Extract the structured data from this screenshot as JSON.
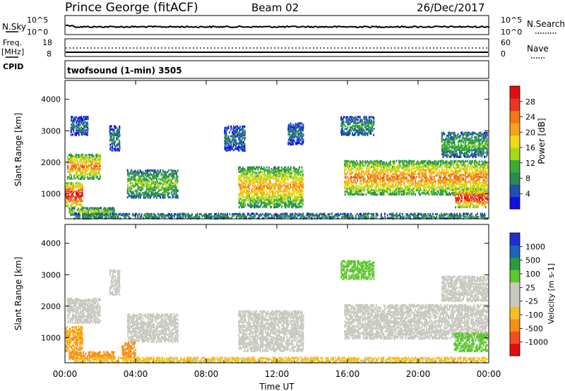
{
  "header": {
    "station": "Prince George (fitACF)",
    "beam": "Beam 02",
    "date": "26/Dec/2017"
  },
  "noise_panel": {
    "left_label": "N.Sky",
    "left_ticks": [
      "10^5",
      "10^0"
    ],
    "right_label": "N.Search",
    "right_ticks": [
      "10^5",
      "10^0"
    ]
  },
  "freq_panel": {
    "left_label_1": "Freq.",
    "left_label_2": "[MHz]",
    "left_ticks": [
      "18",
      "8"
    ],
    "right_label": "Nave",
    "right_ticks": [
      "60",
      "0"
    ],
    "cpid_label": "CPID"
  },
  "mode_text": "twofsound (1-min) 3505",
  "x_axis": {
    "title": "Time UT",
    "ticks": [
      "00:00",
      "04:00",
      "08:00",
      "12:00",
      "16:00",
      "20:00",
      "00:00"
    ]
  },
  "colors": {
    "power": [
      "#1010e0",
      "#2050b0",
      "#2a8a50",
      "#3aaa3a",
      "#a8d81a",
      "#f2d81a",
      "#f5a020",
      "#f07818",
      "#e83820",
      "#e01010"
    ],
    "velocity": [
      "#e01010",
      "#f05020",
      "#f59018",
      "#f2c020",
      "#c8c8c0",
      "#c8c8c0",
      "#5ac828",
      "#2a9a40",
      "#2060c0",
      "#2030d0"
    ],
    "ground": "#c8c8c0"
  },
  "chart_data": [
    {
      "type": "heatmap",
      "panel": "power",
      "ylabel": "Slant Range [km]",
      "yticks": [
        "1000",
        "2000",
        "3000",
        "4000"
      ],
      "ylim": [
        200,
        4600
      ],
      "xlim": [
        0,
        24
      ],
      "colorbar": {
        "title": "Power [dB]",
        "ticks": [
          "4",
          "8",
          "12",
          "16",
          "20",
          "24",
          "28"
        ],
        "range": [
          0,
          32
        ]
      },
      "regions": [
        {
          "t0": 0.1,
          "t1": 2.0,
          "r0": 1500,
          "r1": 2300,
          "v": 20
        },
        {
          "t0": 0.0,
          "t1": 1.0,
          "r0": 600,
          "r1": 1400,
          "v": 26
        },
        {
          "t0": 0.2,
          "t1": 2.8,
          "r0": 350,
          "r1": 600,
          "v": 12
        },
        {
          "t0": 0.3,
          "t1": 1.3,
          "r0": 2900,
          "r1": 3500,
          "v": 6
        },
        {
          "t0": 2.5,
          "t1": 3.1,
          "r0": 2400,
          "r1": 3200,
          "v": 7
        },
        {
          "t0": 3.5,
          "t1": 6.4,
          "r0": 900,
          "r1": 1800,
          "v": 12
        },
        {
          "t0": 9.0,
          "t1": 10.2,
          "r0": 2400,
          "r1": 3200,
          "v": 6
        },
        {
          "t0": 9.8,
          "t1": 13.5,
          "r0": 600,
          "r1": 1900,
          "v": 18
        },
        {
          "t0": 12.6,
          "t1": 13.5,
          "r0": 2600,
          "r1": 3300,
          "v": 6
        },
        {
          "t0": 15.6,
          "t1": 17.5,
          "r0": 2900,
          "r1": 3500,
          "v": 8
        },
        {
          "t0": 15.8,
          "t1": 24.0,
          "r0": 1000,
          "r1": 2100,
          "v": 20
        },
        {
          "t0": 22.0,
          "t1": 24.0,
          "r0": 600,
          "r1": 1200,
          "v": 26
        },
        {
          "t0": 21.3,
          "t1": 24.0,
          "r0": 2200,
          "r1": 3000,
          "v": 10
        },
        {
          "t0": 0.5,
          "t1": 24.0,
          "r0": 200,
          "r1": 420,
          "v": 8
        }
      ]
    },
    {
      "type": "heatmap",
      "panel": "velocity",
      "ylabel": "Slant Range [km]",
      "yticks": [
        "1000",
        "2000",
        "3000",
        "4000"
      ],
      "ylim": [
        200,
        4600
      ],
      "xlim": [
        0,
        24
      ],
      "colorbar": {
        "title": "Velocity [m s-1]",
        "ticks": [
          "1000",
          "500",
          "100",
          "25",
          "-25",
          "-100",
          "-500",
          "-1000"
        ]
      },
      "regions": [
        {
          "t0": 0.1,
          "t1": 2.0,
          "r0": 1500,
          "r1": 2300,
          "v": 0
        },
        {
          "t0": 0.0,
          "t1": 1.0,
          "r0": 600,
          "r1": 1400,
          "v": -100
        },
        {
          "t0": 0.2,
          "t1": 2.8,
          "r0": 350,
          "r1": 600,
          "v": -200
        },
        {
          "t0": 2.5,
          "t1": 3.1,
          "r0": 2400,
          "r1": 3200,
          "v": 0
        },
        {
          "t0": 3.5,
          "t1": 6.4,
          "r0": 900,
          "r1": 1800,
          "v": 0
        },
        {
          "t0": 3.2,
          "t1": 4.0,
          "r0": 400,
          "r1": 900,
          "v": -150
        },
        {
          "t0": 9.8,
          "t1": 13.5,
          "r0": 600,
          "r1": 1900,
          "v": 0
        },
        {
          "t0": 15.6,
          "t1": 17.5,
          "r0": 2900,
          "r1": 3500,
          "v": 60
        },
        {
          "t0": 15.8,
          "t1": 24.0,
          "r0": 1000,
          "r1": 2100,
          "v": 0
        },
        {
          "t0": 22.0,
          "t1": 24.0,
          "r0": 600,
          "r1": 1200,
          "v": 60
        },
        {
          "t0": 21.3,
          "t1": 24.0,
          "r0": 2200,
          "r1": 3000,
          "v": 0
        },
        {
          "t0": 0.5,
          "t1": 24.0,
          "r0": 200,
          "r1": 420,
          "v": -60
        }
      ]
    }
  ]
}
